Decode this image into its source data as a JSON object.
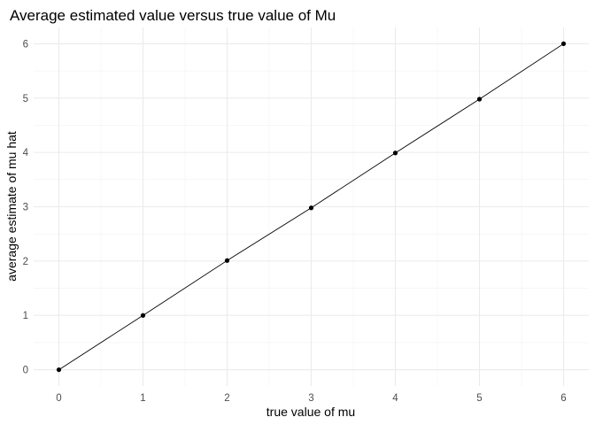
{
  "chart_data": {
    "type": "line",
    "title": "Average estimated value versus true value of Mu",
    "xlabel": "true value of mu",
    "ylabel": "average estimate of mu hat",
    "xlim": [
      -0.3,
      6.3
    ],
    "ylim": [
      -0.3,
      6.3
    ],
    "x_ticks": [
      0,
      1,
      2,
      3,
      4,
      5,
      6
    ],
    "y_ticks": [
      0,
      1,
      2,
      3,
      4,
      5,
      6
    ],
    "x_minor": [
      0.5,
      1.5,
      2.5,
      3.5,
      4.5,
      5.5
    ],
    "y_minor": [
      0.5,
      1.5,
      2.5,
      3.5,
      4.5,
      5.5
    ],
    "grid": true,
    "series": [
      {
        "x": [
          0,
          1,
          2,
          3,
          4,
          5,
          6
        ],
        "y": [
          0.0,
          1.0,
          2.01,
          2.98,
          3.99,
          4.98,
          6.0
        ],
        "color": "#000000",
        "markers": true
      }
    ]
  }
}
